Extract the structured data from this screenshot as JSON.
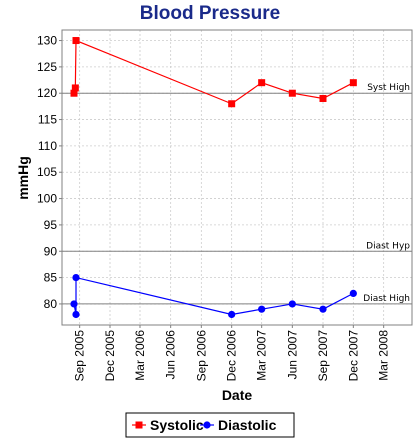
{
  "chart_data": {
    "type": "line",
    "title": "Blood Pressure",
    "xlabel": "Date",
    "ylabel": "mmHg",
    "ylim": [
      76,
      132
    ],
    "xlim": [
      "2005-07-10",
      "2008-05-25"
    ],
    "y_ticks": [
      80,
      85,
      90,
      95,
      100,
      105,
      110,
      115,
      120,
      125,
      130
    ],
    "x_ticks": [
      {
        "date": "2005-09-01",
        "label": "Sep 2005"
      },
      {
        "date": "2005-12-01",
        "label": "Dec 2005"
      },
      {
        "date": "2006-03-01",
        "label": "Mar 2006"
      },
      {
        "date": "2006-06-01",
        "label": "Jun 2006"
      },
      {
        "date": "2006-09-01",
        "label": "Sep 2006"
      },
      {
        "date": "2006-12-01",
        "label": "Dec 2006"
      },
      {
        "date": "2007-03-01",
        "label": "Mar 2007"
      },
      {
        "date": "2007-06-01",
        "label": "Jun 2007"
      },
      {
        "date": "2007-09-01",
        "label": "Sep 2007"
      },
      {
        "date": "2007-12-01",
        "label": "Dec 2007"
      },
      {
        "date": "2008-03-01",
        "label": "Mar 2008"
      }
    ],
    "grid": true,
    "legend_position": "bottom",
    "reference_lines": [
      {
        "label": "Syst High",
        "y": 120
      },
      {
        "label": "Diast Hyp",
        "y": 90
      },
      {
        "label": "Diast High",
        "y": 80
      }
    ],
    "series": [
      {
        "name": "Systolic",
        "color": "#ff0000",
        "marker": "square",
        "points": [
          {
            "x": "2005-08-15",
            "y": 120
          },
          {
            "x": "2005-08-19",
            "y": 121
          },
          {
            "x": "2005-08-21",
            "y": 130
          },
          {
            "x": "2006-12-01",
            "y": 118
          },
          {
            "x": "2007-03-01",
            "y": 122
          },
          {
            "x": "2007-06-01",
            "y": 120
          },
          {
            "x": "2007-09-01",
            "y": 119
          },
          {
            "x": "2007-12-01",
            "y": 122
          }
        ]
      },
      {
        "name": "Diastolic",
        "color": "#0000ff",
        "marker": "circle",
        "points": [
          {
            "x": "2005-08-15",
            "y": 80
          },
          {
            "x": "2005-08-21",
            "y": 78
          },
          {
            "x": "2005-08-21",
            "y": 85
          },
          {
            "x": "2006-12-01",
            "y": 78
          },
          {
            "x": "2007-03-01",
            "y": 79
          },
          {
            "x": "2007-06-01",
            "y": 80
          },
          {
            "x": "2007-09-01",
            "y": 79
          },
          {
            "x": "2007-12-01",
            "y": 82
          }
        ]
      }
    ],
    "colors": {
      "title": "#1a2a8a",
      "plot_background": "#ffffff",
      "grid": "#cccccc",
      "reference_line": "#808080"
    }
  }
}
